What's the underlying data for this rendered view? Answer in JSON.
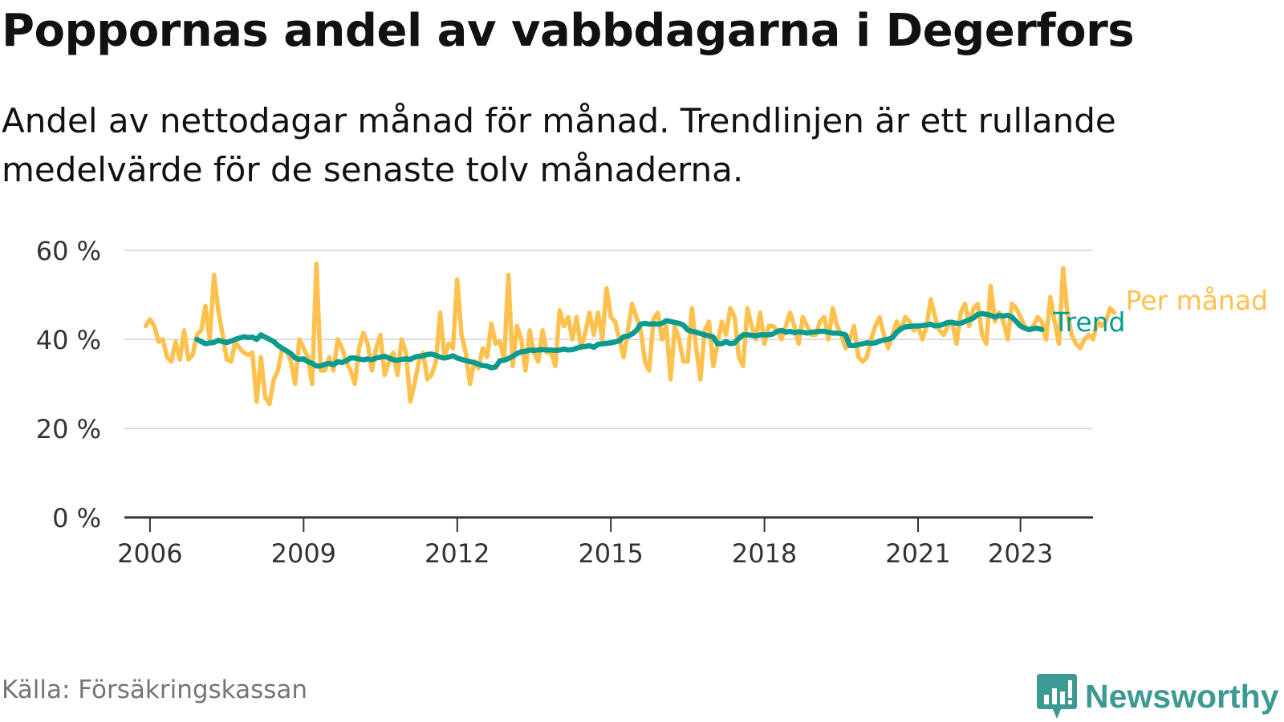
{
  "title": "Poppornas andel av vabbdagarna i Degerfors",
  "subtitle": "Andel av nettodagar månad för månad. Trendlinjen är ett rullande medelvärde för de senaste tolv månaderna.",
  "source": "Källa: Försäkringskassan",
  "brand": {
    "name": "Newsworthy",
    "icon": "bar-chart-exclamation-icon"
  },
  "colors": {
    "monthly": "#ffc14d",
    "trend": "#0a9a8e",
    "grid": "#dddddd",
    "axis": "#333333",
    "text": "#333333"
  },
  "chart_data": {
    "type": "line",
    "title": "Poppornas andel av vabbdagarna i Degerfors",
    "xlabel": "",
    "ylabel": "",
    "ylim": [
      0,
      60
    ],
    "xlim": [
      "2005-07",
      "2024-06"
    ],
    "y_ticks": [
      0,
      20,
      40,
      60
    ],
    "y_tick_labels": [
      "0 %",
      "20 %",
      "40 %",
      "60 %"
    ],
    "x_ticks": [
      "2006-01",
      "2009-01",
      "2012-01",
      "2015-01",
      "2018-01",
      "2021-01",
      "2023-01"
    ],
    "x_tick_labels": [
      "2006",
      "2009",
      "2012",
      "2015",
      "2018",
      "2021",
      "2023"
    ],
    "grid": true,
    "legend": "direct labels at right end of lines",
    "series": [
      {
        "name": "Per månad",
        "start": "2005-12",
        "values": [
          43,
          44.5,
          43,
          39.5,
          40,
          36,
          35,
          39.5,
          35.5,
          42,
          35.5,
          36.5,
          41,
          42,
          47.5,
          40,
          54.5,
          46.5,
          41,
          35.5,
          35,
          39.5,
          38,
          37,
          36.5,
          37,
          26,
          36,
          27,
          25.5,
          31,
          33,
          38,
          37.5,
          35,
          30,
          40,
          38,
          36,
          30,
          57,
          33,
          33,
          36,
          33,
          40,
          38,
          35,
          33,
          30,
          38,
          41.5,
          39,
          33,
          38,
          41,
          32,
          35,
          37,
          32,
          40,
          37,
          26,
          30,
          35,
          37,
          31,
          32,
          35,
          46,
          36,
          39,
          38,
          53.5,
          41,
          37,
          30,
          35,
          33.5,
          38,
          36,
          43.5,
          39,
          39.5,
          35.5,
          54.5,
          34,
          43,
          40,
          33,
          42,
          37,
          35,
          42,
          37,
          37,
          34,
          46.5,
          43,
          45,
          40,
          45,
          38,
          41.5,
          46,
          41,
          46,
          40,
          51.5,
          45,
          44,
          40,
          36,
          42,
          48,
          45,
          42,
          35,
          33,
          44.5,
          46,
          40,
          43,
          31,
          43,
          40,
          35,
          35,
          47,
          38,
          31,
          42,
          44,
          34,
          39,
          44,
          41,
          47,
          45,
          36,
          34,
          47,
          43,
          40,
          46,
          39,
          43,
          43,
          42,
          40,
          43,
          46,
          43,
          39,
          45,
          43,
          41,
          41,
          44,
          45,
          40,
          47,
          43,
          41,
          38,
          40,
          43,
          36,
          35,
          36,
          40,
          43,
          45,
          41,
          38,
          41,
          44,
          42,
          45,
          44,
          42,
          43,
          40,
          43,
          49,
          45,
          42,
          41,
          43,
          44,
          39,
          46,
          48,
          43,
          47,
          48,
          41,
          39,
          52,
          44,
          46,
          44,
          40,
          48,
          47,
          45,
          43,
          42,
          43,
          45,
          44,
          40,
          49.5,
          44,
          39,
          56,
          46,
          41,
          39,
          38,
          40,
          41,
          40,
          44,
          43,
          44,
          47,
          46
        ]
      },
      {
        "name": "Trend",
        "start": "2006-12",
        "values": [
          40,
          39.5,
          39,
          39.2,
          39.3,
          39.8,
          39.5,
          39.3,
          39.6,
          40,
          40.3,
          40.6,
          40.4,
          40.5,
          40,
          41,
          40.5,
          40,
          39.5,
          38.6,
          38,
          37.4,
          36.8,
          35.8,
          35.5,
          35.6,
          35,
          34.6,
          34,
          34,
          34.4,
          34.6,
          34.3,
          35,
          34.8,
          35.2,
          35.8,
          35.8,
          35.6,
          35.4,
          35.6,
          35.4,
          35.8,
          36,
          36.2,
          35.8,
          35.4,
          35.3,
          35.5,
          35.6,
          35.5,
          36,
          36.2,
          36.3,
          36.6,
          36.7,
          36.4,
          36,
          35.8,
          36,
          36.3,
          35.8,
          35.5,
          35.2,
          35,
          34.8,
          34.4,
          34.1,
          34,
          33.6,
          33.8,
          35.2,
          35.3,
          35.7,
          36.2,
          36.8,
          37.2,
          37.3,
          37.6,
          37.5,
          37.6,
          37.7,
          37.6,
          37.6,
          37.5,
          37.6,
          37.8,
          37.6,
          37.7,
          38,
          38.3,
          38.4,
          38.6,
          38.2,
          38.9,
          39,
          39.1,
          39.2,
          39.4,
          39.7,
          40.6,
          40.7,
          41.2,
          42,
          43.4,
          43.6,
          43.4,
          43.5,
          43.4,
          43.6,
          44.2,
          44,
          43.8,
          43.6,
          43.2,
          42.1,
          41.8,
          41.6,
          41.3,
          41,
          40.8,
          40.5,
          39,
          39,
          39.5,
          39,
          39.2,
          40.2,
          41,
          41,
          40.9,
          40.8,
          41,
          41,
          41,
          41.2,
          41.8,
          42,
          41.6,
          41.8,
          41.5,
          41.7,
          41.6,
          41.4,
          41.6,
          41.7,
          41.8,
          41.8,
          41.6,
          41.4,
          41.4,
          41.3,
          41,
          38.6,
          38.6,
          38.8,
          39,
          39.2,
          39.1,
          39.2,
          39.6,
          39.9,
          40,
          40.4,
          41.6,
          42.4,
          42.8,
          42.9,
          43,
          43,
          43.1,
          43.2,
          43.4,
          43,
          43.1,
          43.4,
          43.8,
          43.8,
          43.6,
          43.6,
          44,
          44.4,
          44.8,
          45.6,
          45.8,
          45.6,
          45.4,
          45,
          45.4,
          45.2,
          45.4,
          45,
          44,
          43,
          42.5,
          42.2,
          42.4,
          42.5,
          42.2
        ]
      }
    ],
    "end_labels": [
      {
        "series": "Per månad",
        "text": "Per månad"
      },
      {
        "series": "Trend",
        "text": "Trend"
      }
    ]
  }
}
